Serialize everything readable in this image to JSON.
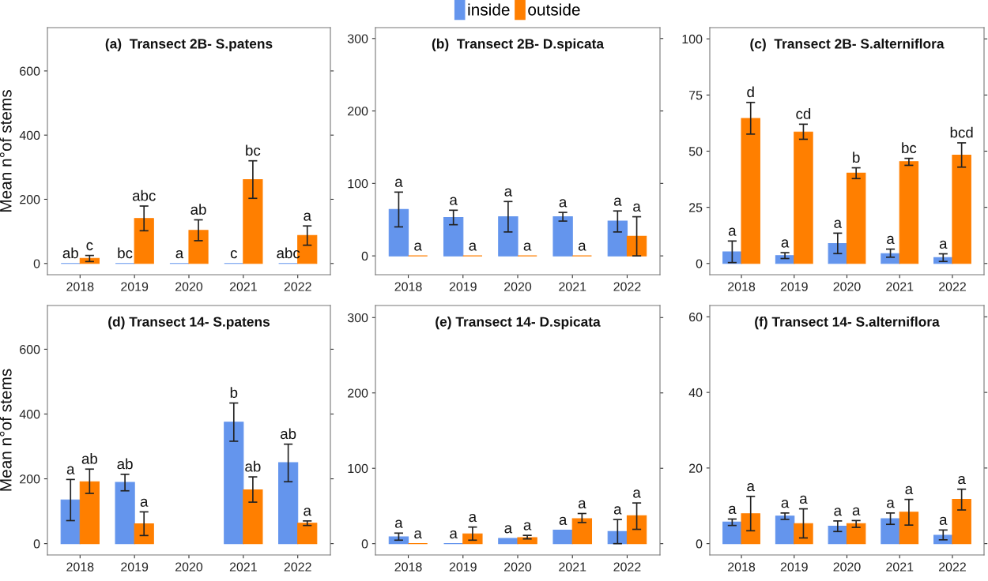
{
  "chart_data": [
    {
      "type": "bar",
      "title": "(a)  Transect 2B- S.patens",
      "ylabel": "Mean n°of stems",
      "categories": [
        "2018",
        "2019",
        "2020",
        "2021",
        "2022"
      ],
      "ylim": [
        -35,
        735
      ],
      "yticks": [
        0,
        200,
        400,
        600
      ],
      "grid": false,
      "series": [
        {
          "color": "#6495ed",
          "values": [
            0,
            0,
            0,
            0,
            0
          ],
          "errors": [
            null,
            null,
            null,
            null,
            null
          ],
          "value_labels": [
            "ab",
            "bc",
            "a",
            "c",
            "abc"
          ]
        },
        {
          "color": "#ff7f00",
          "values": [
            16,
            140,
            103,
            261,
            87
          ],
          "errors": [
            [
              6,
              25
            ],
            [
              102,
              179
            ],
            [
              71,
              136
            ],
            [
              203,
              320
            ],
            [
              57,
              117
            ]
          ],
          "value_labels": [
            "c",
            "abc",
            "ab",
            "bc",
            "a"
          ]
        }
      ]
    },
    {
      "type": "bar",
      "title": "(b)  Transect 2B- D.spicata",
      "categories": [
        "2018",
        "2019",
        "2020",
        "2021",
        "2022"
      ],
      "ylim": [
        -26,
        315
      ],
      "yticks": [
        0,
        100,
        200,
        300
      ],
      "grid": false,
      "legend": "top",
      "series": [
        {
          "name": "inside",
          "color": "#6495ed",
          "values": [
            64,
            53,
            54,
            54,
            48
          ],
          "errors": [
            [
              40,
              88
            ],
            [
              43,
              63
            ],
            [
              33,
              75
            ],
            [
              48,
              60
            ],
            [
              33,
              62
            ]
          ],
          "value_labels": [
            "a",
            "a",
            "a",
            "a",
            "a"
          ]
        },
        {
          "name": "outside",
          "color": "#ff7f00",
          "values": [
            0,
            0,
            0,
            0,
            27
          ],
          "errors": [
            null,
            null,
            null,
            null,
            [
              0,
              54
            ]
          ],
          "value_labels": [
            "a",
            "a",
            "a",
            "a",
            "a"
          ]
        }
      ]
    },
    {
      "type": "bar",
      "title": "(c)  Transect 2B- S.alterniflora",
      "categories": [
        "2018",
        "2019",
        "2020",
        "2021",
        "2022"
      ],
      "ylim": [
        -5,
        105
      ],
      "yticks": [
        0,
        25,
        50,
        75,
        100
      ],
      "grid": false,
      "series": [
        {
          "color": "#6495ed",
          "values": [
            5.2,
            3.5,
            8.9,
            4.4,
            2.6
          ],
          "errors": [
            [
              0.4,
              10
            ],
            [
              2.2,
              4.8
            ],
            [
              4.4,
              13.5
            ],
            [
              2.8,
              6.4
            ],
            [
              0.9,
              4.3
            ]
          ],
          "value_labels": [
            "a",
            "a",
            "a",
            "a",
            "a"
          ]
        },
        {
          "color": "#ff7f00",
          "values": [
            64.6,
            58.5,
            40.2,
            45.3,
            48.2
          ],
          "errors": [
            [
              57.6,
              71.7
            ],
            [
              55.3,
              62
            ],
            [
              37.8,
              42.6
            ],
            [
              43.7,
              46.8
            ],
            [
              42.9,
              53.7
            ]
          ],
          "value_labels": [
            "d",
            "cd",
            "b",
            "bc",
            "bcd"
          ]
        }
      ]
    },
    {
      "type": "bar",
      "title": "(d) Transect 14- S.patens",
      "ylabel": "Mean n°of stems",
      "categories": [
        "2018",
        "2019",
        "2020",
        "2021",
        "2022"
      ],
      "ylim": [
        -35,
        735
      ],
      "yticks": [
        0,
        200,
        400,
        600
      ],
      "grid": false,
      "series": [
        {
          "color": "#6495ed",
          "values": [
            135,
            189,
            null,
            375,
            250
          ],
          "errors": [
            [
              71,
              198
            ],
            [
              163,
              214
            ],
            null,
            [
              316,
              434
            ],
            [
              191,
              307
            ]
          ],
          "value_labels": [
            "a",
            "ab",
            null,
            "b",
            "ab"
          ]
        },
        {
          "color": "#ff7f00",
          "values": [
            191,
            61,
            null,
            166,
            63
          ],
          "errors": [
            [
              155,
              230
            ],
            [
              25,
              98
            ],
            null,
            [
              128,
              206
            ],
            [
              56,
              70
            ]
          ],
          "value_labels": [
            "ab",
            "a",
            null,
            "ab",
            "a"
          ]
        }
      ]
    },
    {
      "type": "bar",
      "title": "(e) Transect 14- D.spicata",
      "categories": [
        "2018",
        "2019",
        "2020",
        "2021",
        "2022"
      ],
      "ylim": [
        -15,
        316
      ],
      "yticks": [
        0,
        100,
        200,
        300
      ],
      "grid": false,
      "series": [
        {
          "color": "#6495ed",
          "values": [
            9,
            0,
            7,
            18,
            16
          ],
          "errors": [
            [
              4.6,
              14
            ],
            null,
            null,
            null,
            [
              0,
              32
            ]
          ],
          "value_labels": [
            "a",
            "a",
            "a",
            "a",
            "a"
          ]
        },
        {
          "color": "#ff7f00",
          "values": [
            0,
            13,
            8,
            33,
            37
          ],
          "errors": [
            null,
            [
              4.6,
              22
            ],
            [
              6.3,
              11
            ],
            [
              28,
              40
            ],
            [
              19,
              54
            ]
          ],
          "value_labels": [
            "a",
            "a",
            "a",
            "a",
            "a"
          ]
        }
      ]
    },
    {
      "type": "bar",
      "title": "(f) Transect 14- S.alterniflora",
      "categories": [
        "2018",
        "2019",
        "2020",
        "2021",
        "2022"
      ],
      "ylim": [
        -3,
        63
      ],
      "yticks": [
        0,
        20,
        40,
        60
      ],
      "grid": false,
      "series": [
        {
          "color": "#6495ed",
          "values": [
            5.7,
            7.3,
            4.6,
            6.6,
            2.2
          ],
          "errors": [
            [
              4.8,
              6.5
            ],
            [
              6.4,
              8.1
            ],
            [
              3.2,
              6
            ],
            [
              5.1,
              8.1
            ],
            [
              1.0,
              3.6
            ]
          ],
          "value_labels": [
            "a",
            "a",
            "a",
            "a",
            "a"
          ]
        },
        {
          "color": "#ff7f00",
          "values": [
            7.9,
            5.3,
            5.3,
            8.3,
            11.7
          ],
          "errors": [
            [
              3.4,
              12.5
            ],
            [
              1.5,
              9.2
            ],
            [
              4.3,
              6.1
            ],
            [
              4.9,
              11.7
            ],
            [
              8.9,
              14.4
            ]
          ],
          "value_labels": [
            "a",
            "a",
            "a",
            "a",
            "a"
          ]
        }
      ]
    }
  ]
}
